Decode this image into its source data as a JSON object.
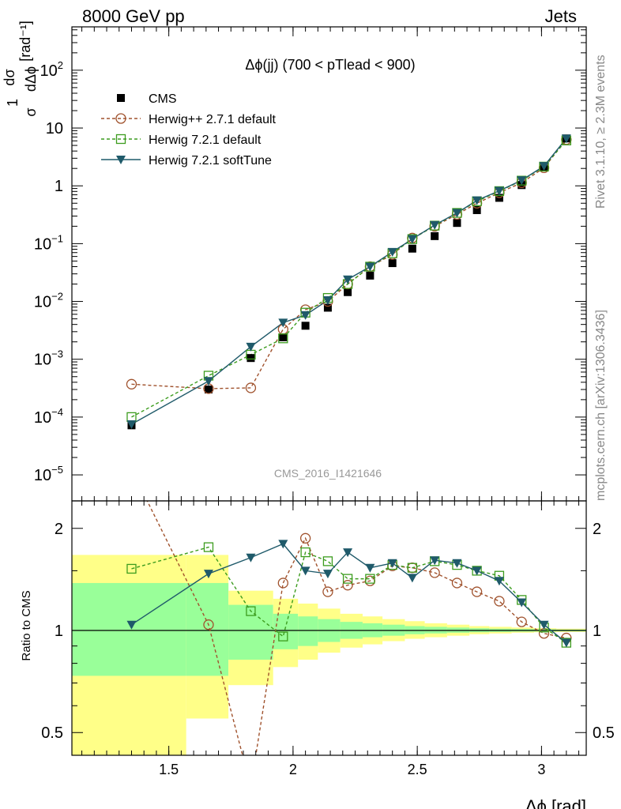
{
  "header": {
    "left": "8000 GeV pp",
    "right": "Jets"
  },
  "side_labels": {
    "rivet": "Rivet 3.1.10, ≥ 2.3M events",
    "source": "mcplots.cern.ch [arXiv:1306.3436]"
  },
  "chart_data": {
    "type": "line",
    "title": "Δϕ(jj) (700 < pTlead <  900)",
    "watermark": "CMS_2016_I1421646",
    "xlabel": "Δϕ [rad]",
    "main_ylabel_top": "1",
    "main_ylabel_dsig": "dσ",
    "main_ylabel_sig": "σ",
    "main_ylabel_dphi": "dΔϕ",
    "main_ylabel_unit": "[rad⁻¹]",
    "ratio_ylabel": "Ratio to CMS",
    "xlim": [
      1.11,
      3.18
    ],
    "main_ylim_log10": [
      -5.45,
      2.75
    ],
    "main_yscale": "log",
    "ratio_ylim_log10": [
      -0.368,
      0.382
    ],
    "ratio_yscale": "log",
    "x_ticks": [
      1.5,
      2,
      2.5,
      3
    ],
    "x_tick_labels": [
      "1.5",
      "2",
      "2.5",
      "3"
    ],
    "main_y_ticks_log10": [
      -5,
      -4,
      -3,
      -2,
      -1,
      0,
      1,
      2
    ],
    "main_y_tick_labels": [
      {
        "base": "10",
        "exp": "−5"
      },
      {
        "base": "10",
        "exp": "−4"
      },
      {
        "base": "10",
        "exp": "−3"
      },
      {
        "base": "10",
        "exp": "−2"
      },
      {
        "base": "10",
        "exp": "−1"
      },
      {
        "base": "1",
        "exp": ""
      },
      {
        "base": "10",
        "exp": ""
      },
      {
        "base": "10",
        "exp": "2"
      }
    ],
    "ratio_y_ticks": [
      0.5,
      1,
      2
    ],
    "ratio_y_tick_labels": [
      "0.5",
      "1",
      "2"
    ],
    "x": [
      1.35,
      1.66,
      1.83,
      1.96,
      2.05,
      2.14,
      2.22,
      2.31,
      2.4,
      2.48,
      2.57,
      2.66,
      2.74,
      2.83,
      2.92,
      3.01,
      3.1
    ],
    "series": [
      {
        "name": "CMS",
        "color": "#000000",
        "marker": "filled-square",
        "values": [
          7.2e-05,
          0.0003,
          0.00105,
          0.0024,
          0.0038,
          0.0078,
          0.0145,
          0.028,
          0.046,
          0.082,
          0.135,
          0.228,
          0.38,
          0.62,
          1.03,
          2.1,
          6.6
        ]
      },
      {
        "name": "Herwig++ 2.7.1 default",
        "color": "#a0522d",
        "marker": "open-circle",
        "dash": true,
        "values": [
          0.00037,
          0.00031,
          0.00032,
          0.0033,
          0.0072,
          0.01,
          0.02,
          0.04,
          0.065,
          0.125,
          0.2,
          0.32,
          0.5,
          0.76,
          1.13,
          2.05,
          6.3
        ],
        "ratio": [
          5.1,
          1.04,
          0.3,
          1.38,
          1.87,
          1.3,
          1.36,
          1.4,
          1.55,
          1.53,
          1.48,
          1.38,
          1.3,
          1.22,
          1.06,
          0.98,
          0.95
        ]
      },
      {
        "name": "Herwig 7.2.1 default",
        "color": "#3c9c1e",
        "marker": "open-square",
        "dash": true,
        "values": [
          0.0001,
          0.00052,
          0.0012,
          0.0023,
          0.0064,
          0.0115,
          0.02,
          0.04,
          0.068,
          0.12,
          0.205,
          0.34,
          0.54,
          0.81,
          1.23,
          2.15,
          6.1
        ],
        "ratio": [
          1.52,
          1.76,
          1.14,
          0.96,
          1.7,
          1.6,
          1.42,
          1.42,
          1.56,
          1.53,
          1.6,
          1.56,
          1.5,
          1.45,
          1.23,
          1.02,
          0.92
        ]
      },
      {
        "name": "Herwig 7.2.1 softTune",
        "color": "#1f5a6a",
        "marker": "filled-triangle-down",
        "dash": false,
        "values": [
          7.5e-05,
          0.00042,
          0.00165,
          0.0043,
          0.0058,
          0.0105,
          0.024,
          0.04,
          0.072,
          0.12,
          0.21,
          0.34,
          0.56,
          0.82,
          1.25,
          2.2,
          6.6
        ],
        "ratio": [
          1.04,
          1.47,
          1.64,
          1.8,
          1.5,
          1.47,
          1.7,
          1.53,
          1.58,
          1.43,
          1.61,
          1.58,
          1.5,
          1.4,
          1.21,
          1.04,
          0.92
        ]
      }
    ],
    "band_edges": [
      1.11,
      1.57,
      1.74,
      1.92,
      2.02,
      2.1,
      2.19,
      2.28,
      2.36,
      2.45,
      2.53,
      2.62,
      2.71,
      2.79,
      2.88,
      2.97,
      3.06,
      3.18
    ],
    "band_inner_lo": [
      0.735,
      0.735,
      0.82,
      0.88,
      0.9,
      0.925,
      0.945,
      0.955,
      0.965,
      0.975,
      0.98,
      0.985,
      0.988,
      0.99,
      0.992,
      0.993,
      0.994
    ],
    "band_inner_hi": [
      1.38,
      1.38,
      1.19,
      1.12,
      1.1,
      1.08,
      1.06,
      1.05,
      1.04,
      1.03,
      1.025,
      1.02,
      1.015,
      1.012,
      1.01,
      1.008,
      1.006
    ],
    "band_outer_lo": [
      0.4,
      0.55,
      0.69,
      0.78,
      0.82,
      0.86,
      0.89,
      0.91,
      0.93,
      0.945,
      0.955,
      0.965,
      0.975,
      0.98,
      0.985,
      0.988,
      0.99
    ],
    "band_outer_hi": [
      1.67,
      1.67,
      1.31,
      1.24,
      1.2,
      1.16,
      1.12,
      1.1,
      1.08,
      1.065,
      1.05,
      1.04,
      1.03,
      1.025,
      1.02,
      1.015,
      1.012
    ],
    "colors": {
      "band_inner": "#99ff99",
      "band_outer": "#ffff88"
    },
    "legend_position": "top-left"
  }
}
